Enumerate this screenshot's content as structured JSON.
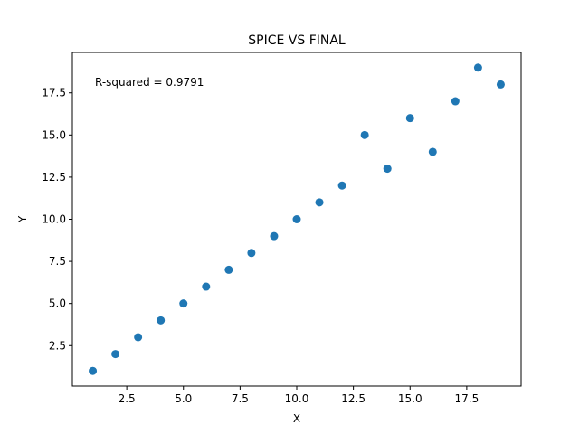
{
  "chart_data": {
    "type": "scatter",
    "title": "SPICE VS FINAL",
    "xlabel": "X",
    "ylabel": "Y",
    "annotation": "R-squared = 0.9791",
    "xlim": [
      0.1,
      19.9
    ],
    "ylim": [
      0.1,
      19.9
    ],
    "xticks": [
      2.5,
      5.0,
      7.5,
      10.0,
      12.5,
      15.0,
      17.5
    ],
    "xtick_labels": [
      "2.5",
      "5.0",
      "7.5",
      "10.0",
      "12.5",
      "15.0",
      "17.5"
    ],
    "yticks": [
      2.5,
      5.0,
      7.5,
      10.0,
      12.5,
      15.0,
      17.5
    ],
    "ytick_labels": [
      "2.5",
      "5.0",
      "7.5",
      "10.0",
      "12.5",
      "15.0",
      "17.5"
    ],
    "grid": false,
    "marker_color": "#1f77b4",
    "points": [
      {
        "x": 1,
        "y": 1
      },
      {
        "x": 2,
        "y": 2
      },
      {
        "x": 3,
        "y": 3
      },
      {
        "x": 4,
        "y": 4
      },
      {
        "x": 5,
        "y": 5
      },
      {
        "x": 6,
        "y": 6
      },
      {
        "x": 7,
        "y": 7
      },
      {
        "x": 8,
        "y": 8
      },
      {
        "x": 9,
        "y": 9
      },
      {
        "x": 10,
        "y": 10
      },
      {
        "x": 11,
        "y": 11
      },
      {
        "x": 12,
        "y": 12
      },
      {
        "x": 13,
        "y": 15
      },
      {
        "x": 14,
        "y": 13
      },
      {
        "x": 15,
        "y": 16
      },
      {
        "x": 16,
        "y": 14
      },
      {
        "x": 17,
        "y": 17
      },
      {
        "x": 18,
        "y": 19
      },
      {
        "x": 19,
        "y": 18
      }
    ]
  }
}
